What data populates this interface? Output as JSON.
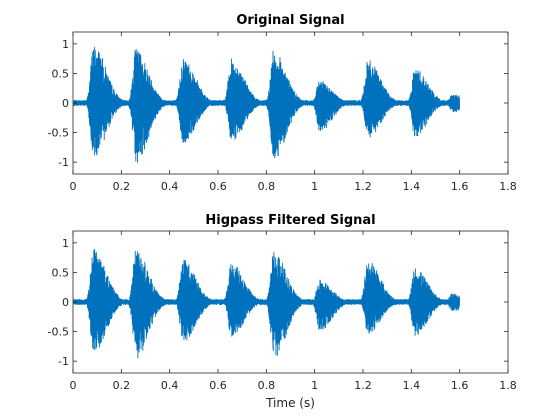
{
  "chart_data": [
    {
      "type": "line",
      "title": "Original Signal",
      "xlabel": "",
      "ylabel": "",
      "xlim": [
        0,
        1.8
      ],
      "ylim": [
        -1.2,
        1.2
      ],
      "xticks": [
        0,
        0.2,
        0.4,
        0.6,
        0.8,
        1,
        1.2,
        1.4,
        1.6,
        1.8
      ],
      "xtick_labels": [
        "0",
        "0.2",
        "0.4",
        "0.6",
        "0.8",
        "1",
        "1.2",
        "1.4",
        "1.6",
        "1.8"
      ],
      "yticks": [
        1,
        0.5,
        0,
        -0.5,
        -1
      ],
      "ytick_labels": [
        "1",
        "0.5",
        "0",
        "-0.5",
        "-1"
      ],
      "grid": false,
      "color": "#0072BD",
      "series": [
        {
          "signal_end": 1.6,
          "noise_floor": 0.05,
          "bursts": [
            {
              "t": 0.085,
              "peak_pos": 1.0,
              "peak_neg": -0.93
            },
            {
              "t": 0.26,
              "peak_pos": 0.93,
              "peak_neg": -1.03
            },
            {
              "t": 0.455,
              "peak_pos": 0.78,
              "peak_neg": -0.7
            },
            {
              "t": 0.655,
              "peak_pos": 0.75,
              "peak_neg": -0.67
            },
            {
              "t": 0.83,
              "peak_pos": 0.9,
              "peak_neg": -0.97
            },
            {
              "t": 1.02,
              "peak_pos": 0.38,
              "peak_neg": -0.5
            },
            {
              "t": 1.22,
              "peak_pos": 0.73,
              "peak_neg": -0.62
            },
            {
              "t": 1.415,
              "peak_pos": 0.6,
              "peak_neg": -0.58
            },
            {
              "t": 1.57,
              "peak_pos": 0.15,
              "peak_neg": -0.16
            }
          ]
        }
      ]
    },
    {
      "type": "line",
      "title": "Higpass Filtered Signal",
      "xlabel": "Time (s)",
      "ylabel": "",
      "xlim": [
        0,
        1.8
      ],
      "ylim": [
        -1.2,
        1.2
      ],
      "xticks": [
        0,
        0.2,
        0.4,
        0.6,
        0.8,
        1,
        1.2,
        1.4,
        1.6,
        1.8
      ],
      "xtick_labels": [
        "0",
        "0.2",
        "0.4",
        "0.6",
        "0.8",
        "1",
        "1.2",
        "1.4",
        "1.6",
        "1.8"
      ],
      "yticks": [
        1,
        0.5,
        0,
        -0.5,
        -1
      ],
      "ytick_labels": [
        "1",
        "0.5",
        "0",
        "-0.5",
        "-1"
      ],
      "grid": false,
      "color": "#0072BD",
      "series": [
        {
          "signal_end": 1.6,
          "noise_floor": 0.05,
          "bursts": [
            {
              "t": 0.085,
              "peak_pos": 0.93,
              "peak_neg": -0.88
            },
            {
              "t": 0.26,
              "peak_pos": 0.9,
              "peak_neg": -0.98
            },
            {
              "t": 0.455,
              "peak_pos": 0.73,
              "peak_neg": -0.7
            },
            {
              "t": 0.655,
              "peak_pos": 0.67,
              "peak_neg": -0.6
            },
            {
              "t": 0.83,
              "peak_pos": 0.87,
              "peak_neg": -0.97
            },
            {
              "t": 1.02,
              "peak_pos": 0.38,
              "peak_neg": -0.5
            },
            {
              "t": 1.22,
              "peak_pos": 0.72,
              "peak_neg": -0.55
            },
            {
              "t": 1.415,
              "peak_pos": 0.58,
              "peak_neg": -0.58
            },
            {
              "t": 1.57,
              "peak_pos": 0.15,
              "peak_neg": -0.16
            }
          ]
        }
      ]
    }
  ]
}
